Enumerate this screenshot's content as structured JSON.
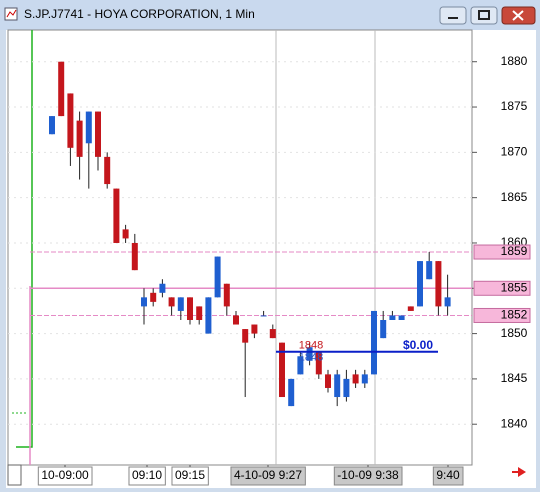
{
  "window_title": "S.JP.J7741 - HOYA CORPORATION, 1 Min",
  "chart_data": {
    "type": "candlestick",
    "up_color": "#1f5fd0",
    "down_color": "#c4161c",
    "ylim": [
      1835.5,
      1883.5
    ],
    "yticks": [
      1840,
      1845,
      1850,
      1855,
      1860,
      1865,
      1870,
      1875,
      1880
    ],
    "x_labels": [
      "10-09:00",
      "09:10",
      "09:15",
      "4-10-09   9:27",
      "-10-09   9:38",
      "9:40"
    ],
    "open": [
      1872,
      1880,
      1876.5,
      1873.5,
      1871,
      1874.5,
      1869.5,
      1866,
      1861.5,
      1860,
      1853,
      1854.5,
      1854.5,
      1854,
      1852.5,
      1854,
      1853,
      1850,
      1854,
      1855.5,
      1852,
      1850.5,
      1851,
      1852,
      1850.5,
      1849,
      1842,
      1845.5,
      1847,
      1848,
      1845.5,
      1843,
      1843,
      1845.5,
      1844.5,
      1845.5,
      1849.5,
      1851.5,
      1851.5,
      1853,
      1853,
      1856,
      1858,
      1853
    ],
    "high": [
      1874,
      1880,
      1876.5,
      1874.5,
      1874.5,
      1874.5,
      1870,
      1866,
      1862,
      1861,
      1855,
      1855,
      1856,
      1854,
      1854,
      1854,
      1853,
      1854,
      1858.5,
      1855.5,
      1852.5,
      1850.5,
      1851,
      1852.5,
      1851,
      1849,
      1845,
      1848,
      1849,
      1848,
      1846,
      1846,
      1846,
      1846,
      1846,
      1852.5,
      1852.5,
      1852.5,
      1852,
      1853,
      1858,
      1859,
      1858,
      1856.5
    ],
    "low": [
      1872,
      1874,
      1868.5,
      1867,
      1866,
      1868,
      1866,
      1860,
      1860,
      1857,
      1851,
      1853,
      1854,
      1852,
      1851.5,
      1851,
      1851,
      1850,
      1854,
      1852,
      1851,
      1843,
      1849.5,
      1852,
      1849.5,
      1843,
      1842,
      1845.5,
      1846.5,
      1845,
      1843.5,
      1842,
      1842.5,
      1844,
      1844,
      1845.5,
      1849.5,
      1851.5,
      1851.5,
      1852.5,
      1853,
      1856,
      1852,
      1852
    ],
    "close": [
      1874,
      1874,
      1870.5,
      1869.5,
      1874.5,
      1869.5,
      1866.5,
      1860,
      1860.5,
      1857,
      1854,
      1853.5,
      1855.5,
      1853,
      1854,
      1851.5,
      1851.5,
      1854,
      1858.5,
      1853,
      1851,
      1849,
      1850,
      1852,
      1849.5,
      1843,
      1845,
      1847.5,
      1848.5,
      1845.5,
      1844,
      1845.5,
      1845,
      1844.5,
      1845.5,
      1852.5,
      1851.5,
      1852,
      1852,
      1852.5,
      1858,
      1858,
      1853,
      1854
    ],
    "levels": [
      {
        "value": 1859,
        "style": "dashed",
        "color": "#e58ac6"
      },
      {
        "value": 1855,
        "style": "solid",
        "color": "#e58ac6"
      },
      {
        "value": 1852,
        "style": "dashed",
        "color": "#e58ac6"
      }
    ],
    "order_line": {
      "value": 1848,
      "label": "$0.00",
      "color": "#0a1fc8"
    },
    "annotations": [
      {
        "text": "1848",
        "color": "#c4161c"
      },
      {
        "text": "1848",
        "color": "#2a52c0"
      }
    ]
  }
}
